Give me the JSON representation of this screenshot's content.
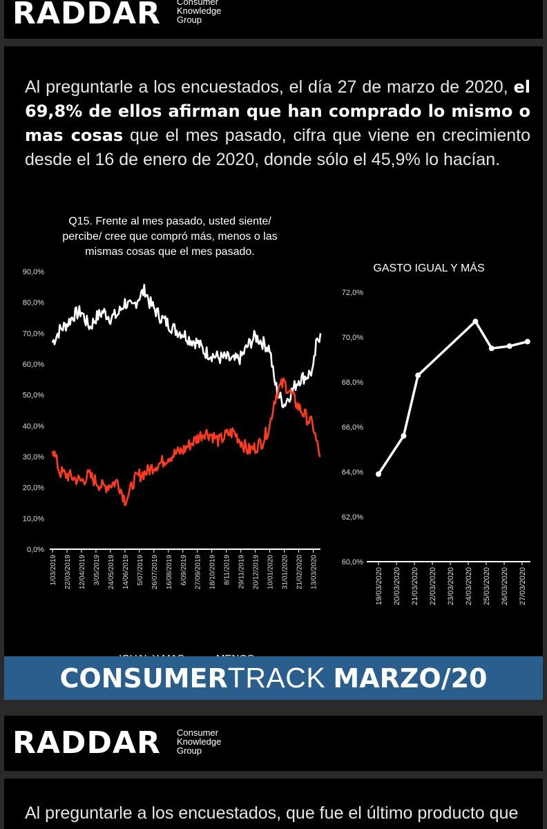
{
  "brand": {
    "wordmark": "RADDAR",
    "subtitle_lines": [
      "Consumer",
      "Knowledge",
      "Group"
    ]
  },
  "intro": {
    "part1": "Al preguntarle a los encuestados, el día 27 de marzo de 2020, ",
    "bold": "el 69,8% de ellos afirman que han comprado lo mismo o mas cosas",
    "part2": " que el mes pasado, cifra que viene en crecimiento desde el 16 de enero de 2020, donde sólo el 45,9% lo hacían."
  },
  "chart_data": [
    {
      "type": "line",
      "title": "Q15. Frente al mes pasado, usted siente/ percibe/ cree que compró más, menos o las mismas cosas que el mes pasado.",
      "title_lines": [
        "Q15. Frente al mes pasado, usted siente/",
        "percibe/ cree que compró más, menos o las",
        "mismas cosas que el mes pasado."
      ],
      "ylim": [
        0,
        90
      ],
      "yticks": [
        "0,0%",
        "10,0%",
        "20,0%",
        "30,0%",
        "40,0%",
        "50,0%",
        "60,0%",
        "70,0%",
        "80,0%",
        "90,0%"
      ],
      "x_ticks": [
        "1/03/2019",
        "22/03/2019",
        "12/04/2019",
        "3/05/2019",
        "24/05/2019",
        "14/06/2019",
        "5/07/2019",
        "26/07/2019",
        "16/08/2019",
        "6/09/2019",
        "27/09/2019",
        "18/10/2019",
        "8/11/2019",
        "29/11/2019",
        "20/12/2019",
        "10/01/2020",
        "31/01/2020",
        "21/02/2020",
        "13/03/2020"
      ],
      "legend": [
        "IGUAL Y MAS",
        "MENOS"
      ],
      "legend_placement": "bottom",
      "series": [
        {
          "name": "IGUAL Y MAS",
          "color": "#ffffff",
          "anchors": [
            [
              0,
              67
            ],
            [
              0.5,
              71
            ],
            [
              1,
              73
            ],
            [
              1.5,
              76
            ],
            [
              2,
              77
            ],
            [
              2.3,
              74
            ],
            [
              2.6,
              72
            ],
            [
              3,
              75
            ],
            [
              3.5,
              77
            ],
            [
              4,
              75
            ],
            [
              4.5,
              76
            ],
            [
              5,
              80
            ],
            [
              5.5,
              78
            ],
            [
              6,
              82
            ],
            [
              6.4,
              84
            ],
            [
              6.7,
              80
            ],
            [
              7,
              78
            ],
            [
              7.5,
              75
            ],
            [
              8,
              73
            ],
            [
              8.5,
              71
            ],
            [
              9,
              70
            ],
            [
              9.5,
              68
            ],
            [
              10,
              67
            ],
            [
              10.5,
              64
            ],
            [
              11,
              63
            ],
            [
              11.5,
              62
            ],
            [
              12,
              62
            ],
            [
              12.5,
              61
            ],
            [
              13,
              62
            ],
            [
              13.5,
              66
            ],
            [
              14,
              69
            ],
            [
              14.5,
              67
            ],
            [
              15,
              65
            ],
            [
              15.3,
              55
            ],
            [
              15.6,
              50
            ],
            [
              16,
              47
            ],
            [
              16.5,
              51
            ],
            [
              17,
              55
            ],
            [
              17.5,
              56
            ],
            [
              18,
              58
            ],
            [
              18.2,
              66
            ],
            [
              18.5,
              70
            ]
          ]
        },
        {
          "name": "MENOS",
          "color": "#ff3b1f",
          "anchors": [
            [
              0,
              33
            ],
            [
              0.5,
              25
            ],
            [
              1,
              24
            ],
            [
              1.5,
              23
            ],
            [
              2,
              22
            ],
            [
              2.5,
              24
            ],
            [
              3,
              22
            ],
            [
              3.5,
              20
            ],
            [
              4,
              21
            ],
            [
              4.5,
              22
            ],
            [
              5,
              16
            ],
            [
              5.3,
              18
            ],
            [
              5.6,
              22
            ],
            [
              6,
              24
            ],
            [
              6.5,
              25
            ],
            [
              7,
              27
            ],
            [
              7.5,
              28
            ],
            [
              8,
              30
            ],
            [
              8.5,
              31
            ],
            [
              9,
              32
            ],
            [
              9.5,
              34
            ],
            [
              10,
              36
            ],
            [
              10.5,
              38
            ],
            [
              11,
              37
            ],
            [
              11.5,
              35
            ],
            [
              12,
              37
            ],
            [
              12.5,
              38
            ],
            [
              13,
              35
            ],
            [
              13.5,
              32
            ],
            [
              14,
              33
            ],
            [
              14.5,
              35
            ],
            [
              15,
              40
            ],
            [
              15.3,
              48
            ],
            [
              15.6,
              52
            ],
            [
              16,
              54
            ],
            [
              16.5,
              50
            ],
            [
              17,
              46
            ],
            [
              17.5,
              43
            ],
            [
              18,
              40
            ],
            [
              18.2,
              35
            ],
            [
              18.5,
              30
            ]
          ]
        }
      ]
    },
    {
      "type": "line",
      "title": "GASTO IGUAL Y MÁS",
      "categories": [
        "19/03/2020",
        "20/03/2020",
        "21/03/2020",
        "22/03/2020",
        "23/03/2020",
        "24/03/2020",
        "25/03/2020",
        "26/03/2020",
        "27/03/2020"
      ],
      "ylim": [
        60,
        72
      ],
      "yticks": [
        "60,0%",
        "62,0%",
        "64,0%",
        "66,0%",
        "68,0%",
        "70,0%",
        "72,0%"
      ],
      "series": [
        {
          "name": "GASTO IGUAL Y MÁS",
          "color": "#ffffff",
          "points": [
            [
              0,
              63.9
            ],
            [
              1.4,
              65.6
            ],
            [
              2.2,
              68.3
            ],
            [
              5.4,
              70.7
            ],
            [
              6.3,
              69.5
            ],
            [
              7.3,
              69.6
            ],
            [
              8.3,
              69.8
            ]
          ]
        }
      ]
    }
  ],
  "banner": {
    "bold": "CONSUMER",
    "light": "TRACK",
    "date": "MARZO/20"
  },
  "next_text": "Al preguntarle a los encuestados, que fue el último producto que",
  "colors": {
    "background": "#000000",
    "banner": "#2a5f8d",
    "menos": "#ff3b1f"
  }
}
